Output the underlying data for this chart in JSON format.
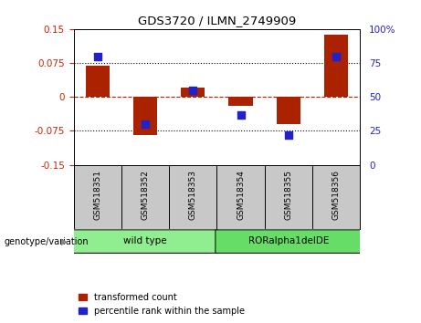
{
  "title": "GDS3720 / ILMN_2749909",
  "samples": [
    "GSM518351",
    "GSM518352",
    "GSM518353",
    "GSM518354",
    "GSM518355",
    "GSM518356"
  ],
  "red_values": [
    0.07,
    -0.085,
    0.02,
    -0.02,
    -0.06,
    0.138
  ],
  "blue_values": [
    80,
    30,
    55,
    37,
    22,
    80
  ],
  "ylim_left": [
    -0.15,
    0.15
  ],
  "ylim_right": [
    0,
    100
  ],
  "yticks_left": [
    -0.15,
    -0.075,
    0,
    0.075,
    0.15
  ],
  "yticks_right": [
    0,
    25,
    50,
    75,
    100
  ],
  "ytick_labels_left": [
    "-0.15",
    "-0.075",
    "0",
    "0.075",
    "0.15"
  ],
  "ytick_labels_right": [
    "0",
    "25",
    "50",
    "75",
    "100%"
  ],
  "hlines_dotted": [
    0.075,
    -0.075
  ],
  "hline_dashed": 0.0,
  "bar_color": "#aa2200",
  "dot_color": "#2222cc",
  "bar_width": 0.5,
  "dot_size": 40,
  "groups": [
    {
      "label": "wild type",
      "indices": [
        0,
        1,
        2
      ],
      "color": "#90ee90"
    },
    {
      "label": "RORalpha1delDE",
      "indices": [
        3,
        4,
        5
      ],
      "color": "#66dd66"
    }
  ],
  "group_label": "genotype/variation",
  "legend_red": "transformed count",
  "legend_blue": "percentile rank within the sample",
  "left_axis_color": "#cc2200",
  "right_axis_color": "#2222cc",
  "bg_color": "#ffffff",
  "plot_bg": "#ffffff",
  "tick_gray_bg": "#c8c8c8"
}
